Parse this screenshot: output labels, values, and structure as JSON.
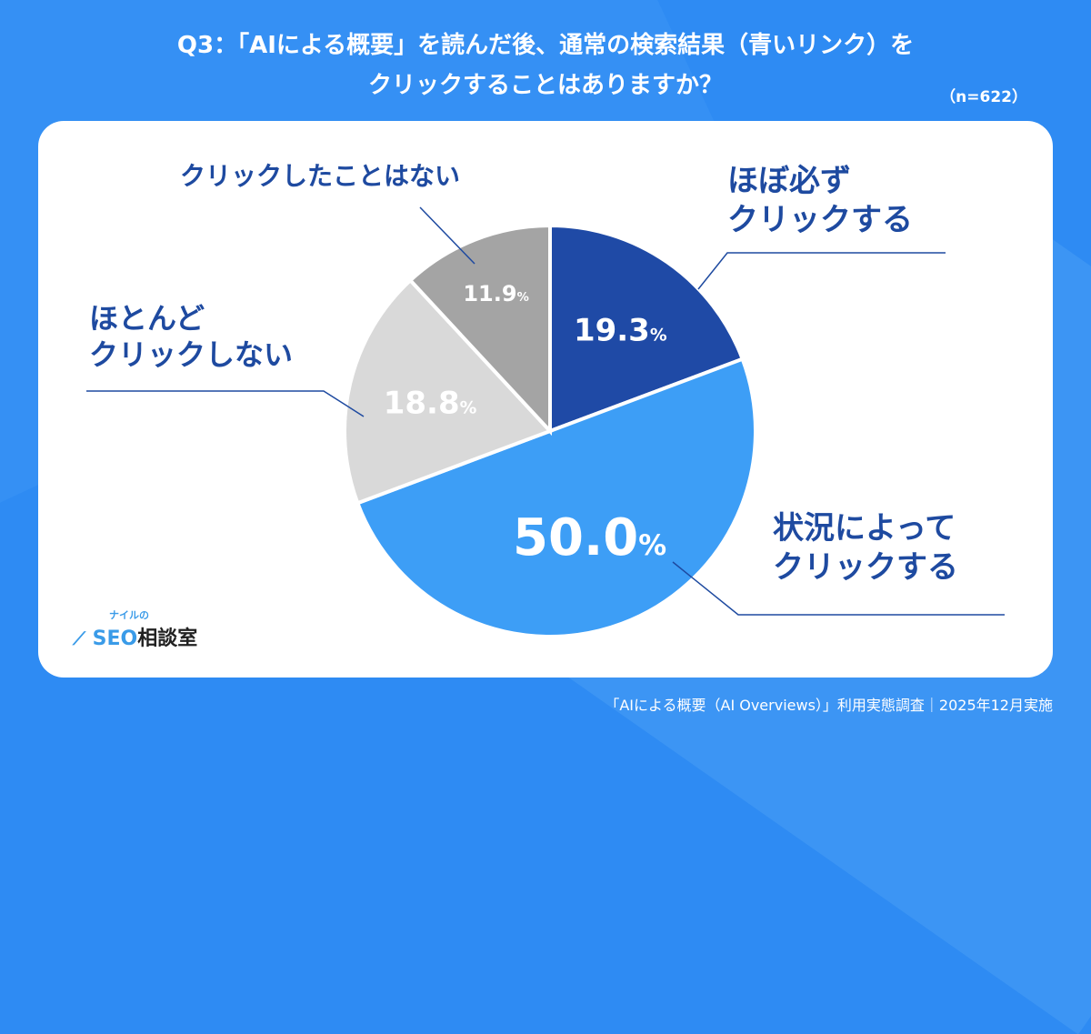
{
  "title_line1": "Q3：「AIによる概要」を読んだ後、通常の検索結果（青いリンク）を",
  "title_line2": "クリックすることはありますか？",
  "sample_size": "（n=622）",
  "footer": "「AIによる概要（AI Overviews）」利用実態調査｜2025年12月実施",
  "logo": {
    "small": "ナイルの",
    "seo": "SEO",
    "rest": "相談室",
    "icon": "chart-line-icon"
  },
  "colors": {
    "background": "#2e8bf3",
    "label_text": "#1e4aa0"
  },
  "chart_data": {
    "type": "pie",
    "start": "12 o'clock, clockwise",
    "unit": "%",
    "slices": [
      {
        "label": "ほぼ必ず\nクリックする",
        "line1": "ほぼ必ず",
        "line2": "クリックする",
        "value": 19.3,
        "display": "19.3",
        "color": "#1f4aa6"
      },
      {
        "label": "状況によって\nクリックする",
        "line1": "状況によって",
        "line2": "クリックする",
        "value": 50.0,
        "display": "50.0",
        "color": "#3d9ef6"
      },
      {
        "label": "ほとんど\nクリックしない",
        "line1": "ほとんど",
        "line2": "クリックしない",
        "value": 18.8,
        "display": "18.8",
        "color": "#d9d9d9"
      },
      {
        "label": "クリックしたことはない",
        "line1": "クリックしたことはない",
        "line2": "",
        "value": 11.9,
        "display": "11.9",
        "color": "#a4a4a4"
      }
    ]
  }
}
